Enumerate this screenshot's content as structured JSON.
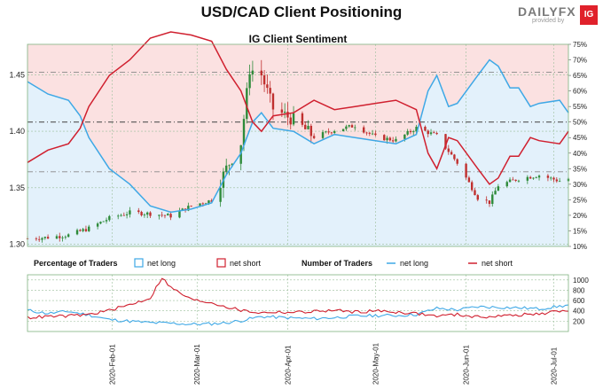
{
  "header": {
    "title": "USD/CAD Client Positioning",
    "subtitle": "IG Client Sentiment",
    "logo_brand": "DAILYFX",
    "logo_sub": "provided by",
    "logo_badge": "IG"
  },
  "legend": {
    "pct_title": "Percentage of Traders",
    "pct_long": "net long",
    "pct_short": "net short",
    "num_title": "Number of Traders",
    "num_long": "net long",
    "num_short": "net short"
  },
  "colors": {
    "long": "#3ea8e6",
    "short": "#d0202f",
    "long_fill": "#e3f1fb",
    "short_fill": "#fbe1e1",
    "up_candle": "#2e8b3a",
    "down_candle": "#c0302f",
    "grid": "#9bbf9b"
  },
  "chart_data": [
    {
      "type": "candlestick",
      "title": "IG Client Sentiment",
      "y_left_ticks": [
        "1.30",
        "1.35",
        "1.40",
        "1.45"
      ],
      "y_left_range": [
        1.298,
        1.477
      ],
      "y_right_ticks": [
        "10%",
        "15%",
        "20%",
        "25%",
        "30%",
        "35%",
        "40%",
        "45%",
        "50%",
        "55%",
        "60%",
        "65%",
        "70%",
        "75%"
      ],
      "y_right_range": [
        10,
        75
      ],
      "x_range": [
        "2020-01-03",
        "2020-07-06"
      ],
      "x_ticks": [
        "2020-Feb-01",
        "2020-Mar-01",
        "2020-Apr-01",
        "2020-May-01",
        "2020-Jun-01",
        "2020-Jul-01"
      ],
      "reference_lines_pct": [
        50,
        34,
        66
      ],
      "price_close_anchors": [
        [
          "2020-01-03",
          1.305
        ],
        [
          "2020-01-10",
          1.306
        ],
        [
          "2020-01-17",
          1.308
        ],
        [
          "2020-01-24",
          1.314
        ],
        [
          "2020-01-31",
          1.323
        ],
        [
          "2020-02-07",
          1.328
        ],
        [
          "2020-02-14",
          1.327
        ],
        [
          "2020-02-21",
          1.325
        ],
        [
          "2020-02-28",
          1.334
        ],
        [
          "2020-03-06",
          1.339
        ],
        [
          "2020-03-11",
          1.367
        ],
        [
          "2020-03-16",
          1.39
        ],
        [
          "2020-03-19",
          1.455
        ],
        [
          "2020-03-23",
          1.45
        ],
        [
          "2020-03-27",
          1.42
        ],
        [
          "2020-04-03",
          1.41
        ],
        [
          "2020-04-10",
          1.395
        ],
        [
          "2020-04-17",
          1.401
        ],
        [
          "2020-04-24",
          1.405
        ],
        [
          "2020-05-01",
          1.395
        ],
        [
          "2020-05-08",
          1.392
        ],
        [
          "2020-05-15",
          1.403
        ],
        [
          "2020-05-22",
          1.396
        ],
        [
          "2020-05-29",
          1.372
        ],
        [
          "2020-06-05",
          1.341
        ],
        [
          "2020-06-09",
          1.337
        ],
        [
          "2020-06-12",
          1.352
        ],
        [
          "2020-06-19",
          1.358
        ],
        [
          "2020-06-26",
          1.361
        ],
        [
          "2020-07-03",
          1.356
        ],
        [
          "2020-07-06",
          1.358
        ]
      ],
      "series": [
        {
          "name": "net long",
          "unit": "%",
          "points": [
            [
              "2020-01-03",
              63
            ],
            [
              "2020-01-10",
              59
            ],
            [
              "2020-01-17",
              57
            ],
            [
              "2020-01-21",
              52
            ],
            [
              "2020-01-24",
              45
            ],
            [
              "2020-01-31",
              35
            ],
            [
              "2020-02-07",
              30
            ],
            [
              "2020-02-14",
              23
            ],
            [
              "2020-02-21",
              21
            ],
            [
              "2020-02-28",
              22
            ],
            [
              "2020-03-06",
              24
            ],
            [
              "2020-03-11",
              33
            ],
            [
              "2020-03-16",
              40
            ],
            [
              "2020-03-20",
              50
            ],
            [
              "2020-03-23",
              53
            ],
            [
              "2020-03-27",
              48
            ],
            [
              "2020-04-03",
              47
            ],
            [
              "2020-04-10",
              43
            ],
            [
              "2020-04-17",
              46
            ],
            [
              "2020-04-24",
              45
            ],
            [
              "2020-05-01",
              44
            ],
            [
              "2020-05-08",
              43
            ],
            [
              "2020-05-15",
              46
            ],
            [
              "2020-05-19",
              60
            ],
            [
              "2020-05-22",
              65
            ],
            [
              "2020-05-26",
              55
            ],
            [
              "2020-05-29",
              56
            ],
            [
              "2020-06-05",
              65
            ],
            [
              "2020-06-09",
              70
            ],
            [
              "2020-06-12",
              68
            ],
            [
              "2020-06-16",
              61
            ],
            [
              "2020-06-19",
              61
            ],
            [
              "2020-06-23",
              55
            ],
            [
              "2020-06-26",
              56
            ],
            [
              "2020-07-03",
              57
            ],
            [
              "2020-07-06",
              53
            ]
          ]
        },
        {
          "name": "net short",
          "unit": "%",
          "points": [
            [
              "2020-01-03",
              37
            ],
            [
              "2020-01-10",
              41
            ],
            [
              "2020-01-17",
              43
            ],
            [
              "2020-01-21",
              48
            ],
            [
              "2020-01-24",
              55
            ],
            [
              "2020-01-31",
              65
            ],
            [
              "2020-02-07",
              70
            ],
            [
              "2020-02-14",
              77
            ],
            [
              "2020-02-21",
              79
            ],
            [
              "2020-02-28",
              78
            ],
            [
              "2020-03-06",
              76
            ],
            [
              "2020-03-11",
              67
            ],
            [
              "2020-03-16",
              60
            ],
            [
              "2020-03-20",
              50
            ],
            [
              "2020-03-23",
              47
            ],
            [
              "2020-03-27",
              52
            ],
            [
              "2020-04-03",
              53
            ],
            [
              "2020-04-10",
              57
            ],
            [
              "2020-04-17",
              54
            ],
            [
              "2020-04-24",
              55
            ],
            [
              "2020-05-01",
              56
            ],
            [
              "2020-05-08",
              57
            ],
            [
              "2020-05-15",
              54
            ],
            [
              "2020-05-19",
              40
            ],
            [
              "2020-05-22",
              35
            ],
            [
              "2020-05-26",
              45
            ],
            [
              "2020-05-29",
              44
            ],
            [
              "2020-06-05",
              35
            ],
            [
              "2020-06-09",
              30
            ],
            [
              "2020-06-12",
              32
            ],
            [
              "2020-06-16",
              39
            ],
            [
              "2020-06-19",
              39
            ],
            [
              "2020-06-23",
              45
            ],
            [
              "2020-06-26",
              44
            ],
            [
              "2020-07-03",
              43
            ],
            [
              "2020-07-06",
              47
            ]
          ]
        }
      ]
    },
    {
      "type": "line",
      "title": "Number of Traders",
      "y_ticks": [
        "200",
        "400",
        "600",
        "800",
        "1000"
      ],
      "y_range": [
        0,
        1100
      ],
      "x_range": [
        "2020-01-03",
        "2020-07-06"
      ],
      "series": [
        {
          "name": "net long",
          "points": [
            [
              "2020-01-03",
              410
            ],
            [
              "2020-01-10",
              350
            ],
            [
              "2020-01-17",
              390
            ],
            [
              "2020-01-24",
              320
            ],
            [
              "2020-01-31",
              230
            ],
            [
              "2020-02-07",
              200
            ],
            [
              "2020-02-14",
              170
            ],
            [
              "2020-02-21",
              160
            ],
            [
              "2020-02-28",
              140
            ],
            [
              "2020-03-06",
              150
            ],
            [
              "2020-03-11",
              170
            ],
            [
              "2020-03-16",
              210
            ],
            [
              "2020-03-23",
              290
            ],
            [
              "2020-03-27",
              280
            ],
            [
              "2020-04-03",
              260
            ],
            [
              "2020-04-10",
              250
            ],
            [
              "2020-04-17",
              270
            ],
            [
              "2020-04-24",
              300
            ],
            [
              "2020-05-01",
              310
            ],
            [
              "2020-05-08",
              310
            ],
            [
              "2020-05-15",
              330
            ],
            [
              "2020-05-22",
              450
            ],
            [
              "2020-05-29",
              420
            ],
            [
              "2020-06-05",
              480
            ],
            [
              "2020-06-12",
              470
            ],
            [
              "2020-06-19",
              460
            ],
            [
              "2020-06-26",
              440
            ],
            [
              "2020-07-06",
              510
            ]
          ]
        },
        {
          "name": "net short",
          "points": [
            [
              "2020-01-03",
              270
            ],
            [
              "2020-01-10",
              290
            ],
            [
              "2020-01-17",
              300
            ],
            [
              "2020-01-24",
              330
            ],
            [
              "2020-01-31",
              410
            ],
            [
              "2020-02-07",
              520
            ],
            [
              "2020-02-14",
              650
            ],
            [
              "2020-02-18",
              1050
            ],
            [
              "2020-02-21",
              850
            ],
            [
              "2020-02-28",
              620
            ],
            [
              "2020-03-06",
              560
            ],
            [
              "2020-03-11",
              480
            ],
            [
              "2020-03-16",
              410
            ],
            [
              "2020-03-23",
              360
            ],
            [
              "2020-03-27",
              380
            ],
            [
              "2020-04-03",
              370
            ],
            [
              "2020-04-10",
              390
            ],
            [
              "2020-04-17",
              410
            ],
            [
              "2020-04-24",
              380
            ],
            [
              "2020-05-01",
              400
            ],
            [
              "2020-05-08",
              380
            ],
            [
              "2020-05-15",
              350
            ],
            [
              "2020-05-22",
              300
            ],
            [
              "2020-05-29",
              330
            ],
            [
              "2020-06-05",
              280
            ],
            [
              "2020-06-12",
              300
            ],
            [
              "2020-06-19",
              320
            ],
            [
              "2020-06-26",
              340
            ],
            [
              "2020-07-06",
              420
            ]
          ]
        }
      ]
    }
  ]
}
